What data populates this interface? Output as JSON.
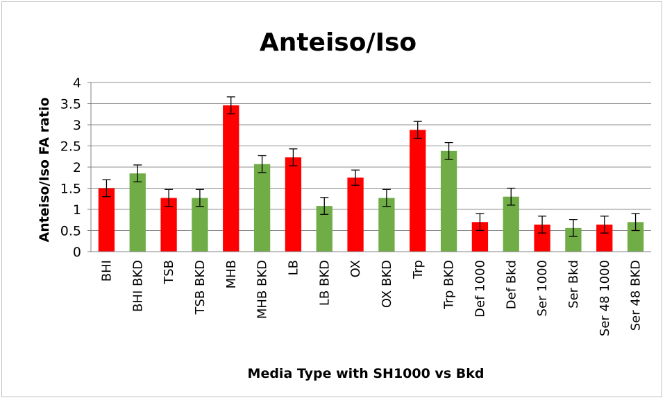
{
  "chart_data": {
    "type": "bar",
    "title": "Anteiso/Iso",
    "xlabel": "Media Type with SH1000 vs Bkd",
    "ylabel": "Anteiso/Iso FA ratio",
    "ylim": [
      0,
      4
    ],
    "yticks": [
      "0",
      "0.5",
      "1",
      "1.5",
      "2",
      "2.5",
      "3",
      "3.5",
      "4"
    ],
    "ytick_values": [
      0,
      0.5,
      1,
      1.5,
      2,
      2.5,
      3,
      3.5,
      4
    ],
    "grid": true,
    "legend": "none",
    "colors": {
      "sh1000": "#ff0000",
      "bkd": "#70ad47"
    },
    "categories": [
      "BHI",
      "BHI BKD",
      "TSB",
      "TSB BKD",
      "MHB",
      "MHB BKD",
      "LB",
      "LB BKD",
      "OX",
      "OX BKD",
      "Trp",
      "Trp BKD",
      "Def 1000",
      "Def Bkd",
      "Ser 1000",
      "Ser Bkd",
      "Ser 48 1000",
      "Ser 48 BKD"
    ],
    "values": [
      1.5,
      1.85,
      1.27,
      1.27,
      3.46,
      2.07,
      2.23,
      1.08,
      1.75,
      1.27,
      2.88,
      2.38,
      0.7,
      1.3,
      0.64,
      0.56,
      0.64,
      0.7
    ],
    "errors": [
      0.2,
      0.2,
      0.2,
      0.2,
      0.2,
      0.2,
      0.2,
      0.2,
      0.18,
      0.2,
      0.2,
      0.2,
      0.2,
      0.2,
      0.2,
      0.2,
      0.2,
      0.2
    ],
    "bar_groups": [
      "sh1000",
      "bkd",
      "sh1000",
      "bkd",
      "sh1000",
      "bkd",
      "sh1000",
      "bkd",
      "sh1000",
      "bkd",
      "sh1000",
      "bkd",
      "sh1000",
      "bkd",
      "sh1000",
      "bkd",
      "sh1000",
      "bkd"
    ]
  }
}
